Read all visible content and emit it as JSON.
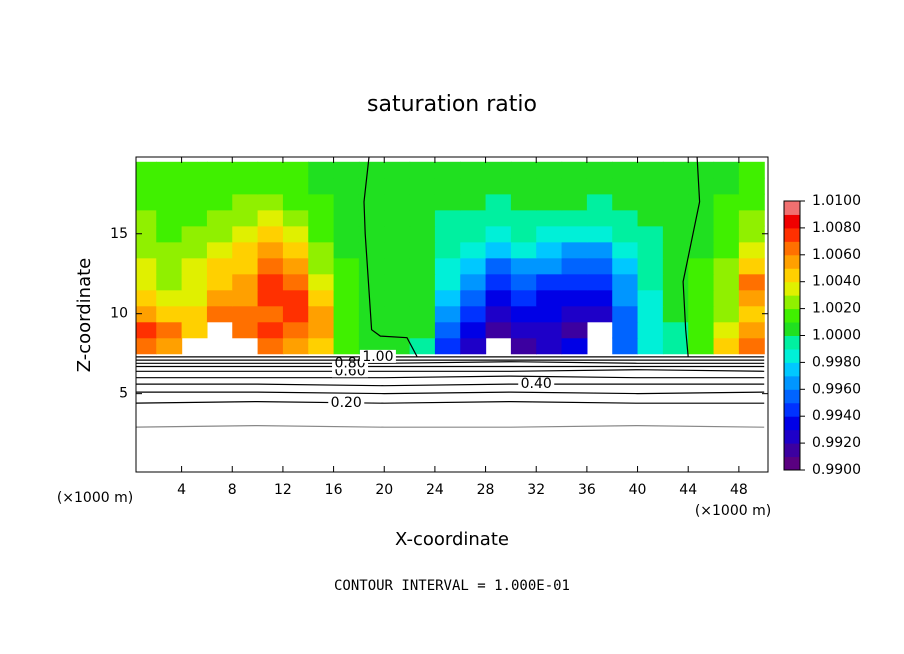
{
  "chart_data": {
    "type": "contour",
    "title": "saturation ratio",
    "x_label": "X-coordinate",
    "y_label": "Z-coordinate",
    "x_unit_label": "(×1000 m)",
    "y_unit_label": "(×1000 m)",
    "annotation": "CONTOUR INTERVAL = 1.000E-01",
    "xlim": [
      0.4,
      50.3
    ],
    "ylim": [
      0.1,
      19.8
    ],
    "xticks": [
      4,
      8,
      12,
      16,
      20,
      24,
      28,
      32,
      36,
      40,
      44,
      48
    ],
    "yticks": [
      5,
      10,
      15
    ],
    "grid": false,
    "colorbar": {
      "clim": [
        0.99,
        1.01
      ],
      "colors": [
        "#5a0080",
        "#3c00a0",
        "#1e00c8",
        "#0000e6",
        "#0032ff",
        "#0064ff",
        "#0096ff",
        "#00c8ff",
        "#00f0d8",
        "#00f0a0",
        "#20e020",
        "#40f000",
        "#90f000",
        "#e0f000",
        "#ffd000",
        "#ffa000",
        "#ff7000",
        "#ff3000",
        "#f00000",
        "#f07070"
      ],
      "ticks": [
        {
          "value": 0.99,
          "label": "0.9900"
        },
        {
          "value": 0.992,
          "label": "0.9920"
        },
        {
          "value": 0.994,
          "label": "0.9940"
        },
        {
          "value": 0.996,
          "label": "0.9960"
        },
        {
          "value": 0.998,
          "label": "0.9980"
        },
        {
          "value": 1.0,
          "label": "1.0000"
        },
        {
          "value": 1.002,
          "label": "1.0020"
        },
        {
          "value": 1.004,
          "label": "1.0040"
        },
        {
          "value": 1.006,
          "label": "1.0060"
        },
        {
          "value": 1.008,
          "label": "1.0080"
        },
        {
          "value": 1.01,
          "label": "1.0100"
        }
      ]
    },
    "field": {
      "x": [
        1,
        3,
        5,
        7,
        9,
        11,
        13,
        15,
        17,
        19,
        21,
        23,
        25,
        27,
        29,
        31,
        33,
        35,
        37,
        39,
        41,
        43,
        45,
        47,
        49
      ],
      "z": [
        8,
        9,
        10,
        11,
        12,
        13,
        14,
        15,
        16,
        17,
        18,
        19
      ],
      "values": [
        [
          1.006,
          1.005,
          null,
          null,
          null,
          1.006,
          1.005,
          1.004,
          1.001,
          1.0,
          1.0,
          0.999,
          0.994,
          0.992,
          null,
          0.991,
          0.992,
          0.993,
          null,
          0.995,
          0.998,
          0.999,
          1.001,
          1.004,
          1.006
        ],
        [
          1.007,
          1.006,
          1.004,
          null,
          1.006,
          1.007,
          1.006,
          1.005,
          1.001,
          1.0,
          1.0,
          1.0,
          0.995,
          0.993,
          0.991,
          0.992,
          0.992,
          0.991,
          null,
          0.995,
          0.998,
          0.999,
          1.001,
          1.003,
          1.005
        ],
        [
          1.005,
          1.004,
          1.004,
          1.006,
          1.006,
          1.006,
          1.007,
          1.005,
          1.001,
          1.0,
          1.0,
          1.0,
          0.996,
          0.994,
          0.992,
          0.993,
          0.993,
          0.992,
          0.992,
          0.995,
          0.998,
          1.0,
          1.001,
          1.002,
          1.004
        ],
        [
          1.004,
          1.003,
          1.003,
          1.005,
          1.005,
          1.007,
          1.007,
          1.004,
          1.001,
          1.0,
          1.0,
          1.0,
          0.997,
          0.995,
          0.993,
          0.994,
          0.993,
          0.993,
          0.993,
          0.996,
          0.998,
          1.0,
          1.001,
          1.002,
          1.005
        ],
        [
          1.003,
          1.002,
          1.003,
          1.004,
          1.005,
          1.007,
          1.006,
          1.003,
          1.001,
          1.0,
          1.0,
          1.0,
          0.998,
          0.996,
          0.994,
          0.995,
          0.994,
          0.994,
          0.994,
          0.996,
          0.999,
          1.0,
          1.001,
          1.002,
          1.006
        ],
        [
          1.003,
          1.002,
          1.003,
          1.004,
          1.004,
          1.006,
          1.005,
          1.002,
          1.001,
          1.0,
          1.0,
          1.0,
          0.998,
          0.997,
          0.995,
          0.996,
          0.996,
          0.995,
          0.995,
          0.997,
          0.999,
          1.0,
          1.001,
          1.002,
          1.004
        ],
        [
          1.002,
          1.002,
          1.002,
          1.003,
          1.004,
          1.005,
          1.004,
          1.002,
          1.0,
          1.0,
          1.0,
          1.0,
          0.999,
          0.998,
          0.997,
          0.998,
          0.997,
          0.996,
          0.996,
          0.998,
          0.999,
          1.0,
          1.0,
          1.001,
          1.003
        ],
        [
          1.002,
          1.001,
          1.002,
          1.002,
          1.003,
          1.004,
          1.003,
          1.001,
          1.0,
          1.0,
          1.0,
          1.0,
          0.999,
          0.999,
          0.998,
          0.999,
          0.998,
          0.998,
          0.998,
          0.999,
          0.999,
          1.0,
          1.0,
          1.001,
          1.002
        ],
        [
          1.002,
          1.001,
          1.001,
          1.002,
          1.002,
          1.003,
          1.002,
          1.001,
          1.0,
          1.0,
          1.0,
          1.0,
          0.999,
          0.999,
          0.999,
          0.999,
          0.999,
          0.999,
          0.999,
          0.999,
          1.0,
          1.0,
          1.0,
          1.001,
          1.002
        ],
        [
          1.001,
          1.001,
          1.001,
          1.001,
          1.002,
          1.002,
          1.001,
          1.001,
          1.0,
          1.0,
          1.0,
          1.0,
          1.0,
          1.0,
          0.999,
          1.0,
          1.0,
          1.0,
          0.999,
          1.0,
          1.0,
          1.0,
          1.0,
          1.001,
          1.001
        ],
        [
          1.001,
          1.001,
          1.001,
          1.001,
          1.001,
          1.001,
          1.001,
          1.0,
          1.0,
          1.0,
          1.0,
          1.0,
          1.0,
          1.0,
          1.0,
          1.0,
          1.0,
          1.0,
          1.0,
          1.0,
          1.0,
          1.0,
          1.0,
          1.0,
          1.001
        ],
        [
          1.001,
          1.001,
          1.001,
          1.001,
          1.001,
          1.001,
          1.001,
          1.0,
          1.0,
          1.0,
          1.0,
          1.0,
          1.0,
          1.0,
          1.0,
          1.0,
          1.0,
          1.0,
          1.0,
          1.0,
          1.0,
          1.0,
          1.0,
          1.0,
          1.001
        ]
      ]
    },
    "contours": [
      {
        "level": 0.1,
        "x": [
          0,
          10,
          20,
          30,
          40,
          50
        ],
        "z": [
          2.9,
          3.0,
          2.9,
          2.9,
          3.0,
          2.9
        ],
        "color": "#888888"
      },
      {
        "level": 0.2,
        "label": "0.20",
        "x": [
          0,
          10,
          20,
          30,
          40,
          50
        ],
        "z": [
          4.4,
          4.5,
          4.4,
          4.5,
          4.4,
          4.4
        ],
        "color": "#000000"
      },
      {
        "level": 0.3,
        "x": [
          0,
          10,
          20,
          30,
          40,
          50
        ],
        "z": [
          5.1,
          5.1,
          5.0,
          5.1,
          5.0,
          5.1
        ],
        "color": "#000000"
      },
      {
        "level": 0.4,
        "label": "0.40",
        "x": [
          0,
          10,
          20,
          30,
          40,
          50
        ],
        "z": [
          5.6,
          5.6,
          5.5,
          5.6,
          5.6,
          5.6
        ],
        "color": "#000000"
      },
      {
        "level": 0.5,
        "x": [
          0,
          10,
          20,
          30,
          40,
          50
        ],
        "z": [
          6.0,
          6.0,
          6.0,
          6.1,
          6.0,
          6.0
        ],
        "color": "#000000"
      },
      {
        "level": 0.6,
        "label": "0.60",
        "x": [
          0,
          10,
          20,
          30,
          40,
          50
        ],
        "z": [
          6.4,
          6.4,
          6.4,
          6.4,
          6.5,
          6.4
        ],
        "color": "#000000"
      },
      {
        "level": 0.7,
        "x": [
          0,
          10,
          20,
          30,
          40,
          50
        ],
        "z": [
          6.7,
          6.7,
          6.7,
          6.7,
          6.7,
          6.7
        ],
        "color": "#000000"
      },
      {
        "level": 0.8,
        "label": "0.80",
        "x": [
          0,
          10,
          20,
          30,
          40,
          50
        ],
        "z": [
          6.9,
          6.9,
          6.9,
          7.0,
          6.9,
          6.9
        ],
        "color": "#000000"
      },
      {
        "level": 0.9,
        "x": [
          0,
          10,
          20,
          30,
          40,
          50
        ],
        "z": [
          7.1,
          7.1,
          7.1,
          7.1,
          7.1,
          7.1
        ],
        "color": "#000000"
      },
      {
        "level": 1.0,
        "label": "1.00",
        "x": [
          0,
          10,
          20,
          30,
          40,
          50,
          null,
          18.8,
          18.4,
          18.5,
          19.0,
          19.7,
          21.8,
          22.6,
          null,
          44.7,
          44.9,
          43.6,
          43.8,
          44.0
        ],
        "z": [
          7.3,
          7.3,
          7.3,
          7.3,
          7.3,
          7.3,
          null,
          19.8,
          17.0,
          15.0,
          9.0,
          8.6,
          8.5,
          7.3,
          null,
          19.8,
          17.0,
          12.0,
          9.0,
          7.3
        ],
        "color": "#000000"
      }
    ]
  }
}
